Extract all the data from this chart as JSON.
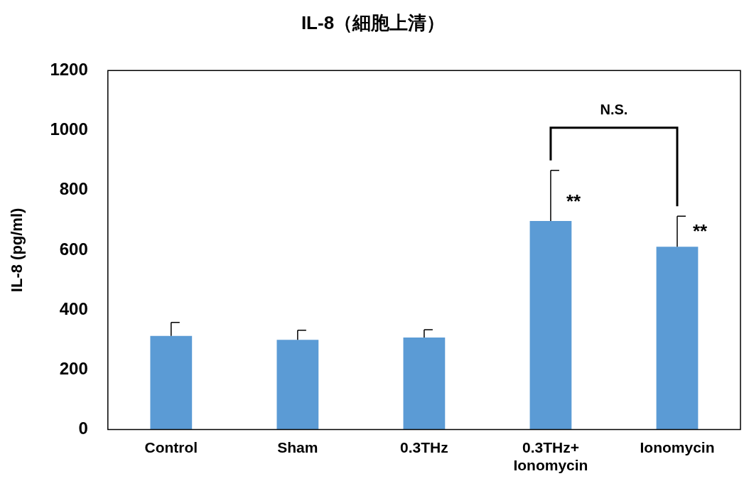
{
  "chart_data": {
    "type": "bar",
    "title": "IL-8（細胞上清）",
    "ylabel": "IL-8 (pg/ml)",
    "categories": [
      "Control",
      "Sham",
      "0.3THz",
      "0.3THz+ Ionomycin",
      "Ionomycin"
    ],
    "values": [
      313,
      300,
      308,
      697,
      611
    ],
    "errors": [
      [
        313,
        358
      ],
      [
        300,
        332
      ],
      [
        308,
        334
      ],
      [
        697,
        866
      ],
      [
        611,
        713
      ]
    ],
    "color": "#5b9bd5",
    "ylim": [
      0,
      1200
    ],
    "yticks": [
      0,
      200,
      400,
      600,
      800,
      1000,
      1200
    ],
    "grid": false,
    "legend": false,
    "annotations": [
      {
        "text": "**",
        "x": "0.3THz+ Ionomycin",
        "y": 760
      },
      {
        "text": "**",
        "x": "Ionomycin",
        "y": 660
      },
      "N.S."
    ]
  }
}
